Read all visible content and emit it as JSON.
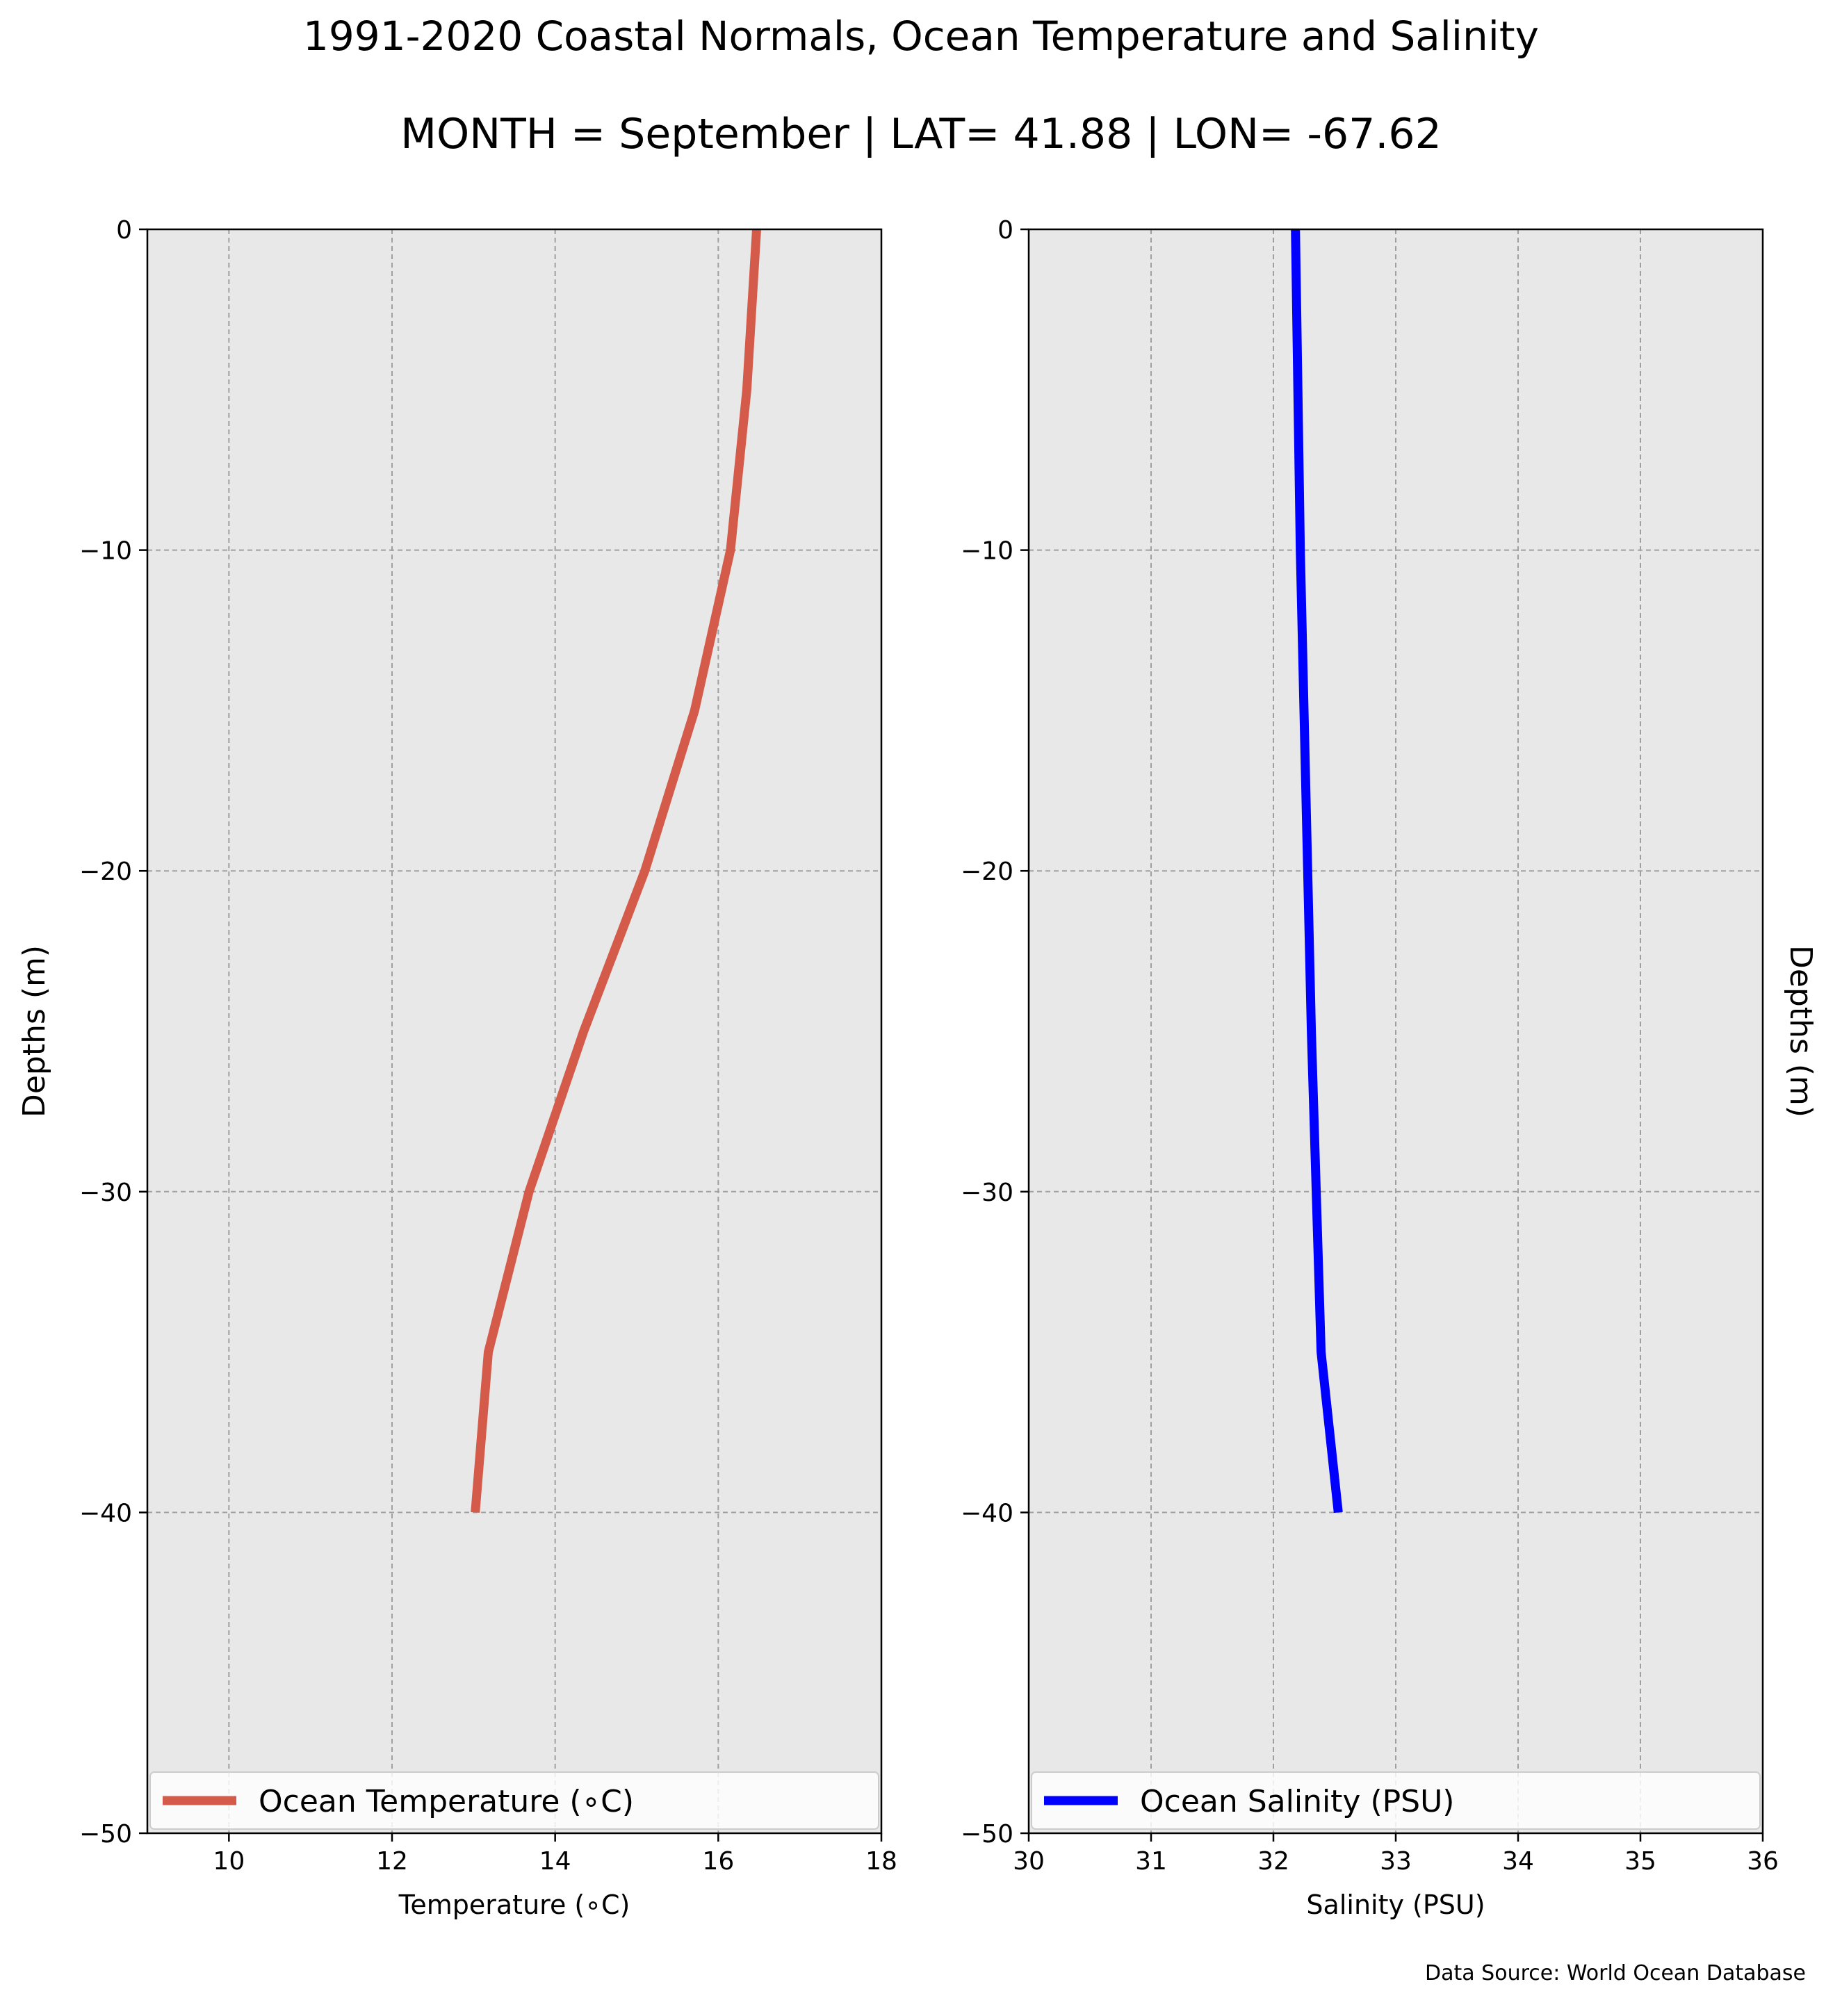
{
  "title": "1991-2020 Coastal Normals, Ocean Temperature and Salinity",
  "subtitle": "MONTH = September | LAT= 41.88 | LON= -67.62",
  "source": "Data Source: World Ocean Database",
  "chart_data": [
    {
      "type": "line",
      "xlabel": "Temperature (∘C)",
      "ylabel": "Depths (m)",
      "xlim": [
        9,
        18
      ],
      "ylim": [
        -50,
        0
      ],
      "xticks": [
        10,
        12,
        14,
        16,
        18
      ],
      "yticks": [
        0,
        -10,
        -20,
        -30,
        -40,
        -50
      ],
      "grid": true,
      "legend_position": "bottom",
      "series": [
        {
          "name": "Ocean Temperature (∘C)",
          "color": "#d45a4a",
          "x": [
            16.47,
            16.35,
            16.15,
            15.71,
            15.1,
            14.35,
            13.68,
            13.18,
            13.02
          ],
          "y": [
            0,
            -5,
            -10,
            -15,
            -20,
            -25,
            -30,
            -35,
            -40
          ]
        }
      ]
    },
    {
      "type": "line",
      "xlabel": "Salinity (PSU)",
      "ylabel": "Depths (m)",
      "xlim": [
        30,
        36
      ],
      "ylim": [
        -50,
        0
      ],
      "xticks": [
        30,
        31,
        32,
        33,
        34,
        35,
        36
      ],
      "yticks": [
        0,
        -10,
        -20,
        -30,
        -40,
        -50
      ],
      "grid": true,
      "legend_position": "bottom",
      "series": [
        {
          "name": "Ocean Salinity (PSU)",
          "color": "#0000ff",
          "x": [
            32.18,
            32.2,
            32.22,
            32.25,
            32.28,
            32.31,
            32.35,
            32.39,
            32.53
          ],
          "y": [
            0,
            -5,
            -10,
            -15,
            -20,
            -25,
            -30,
            -35,
            -40
          ]
        }
      ]
    }
  ]
}
